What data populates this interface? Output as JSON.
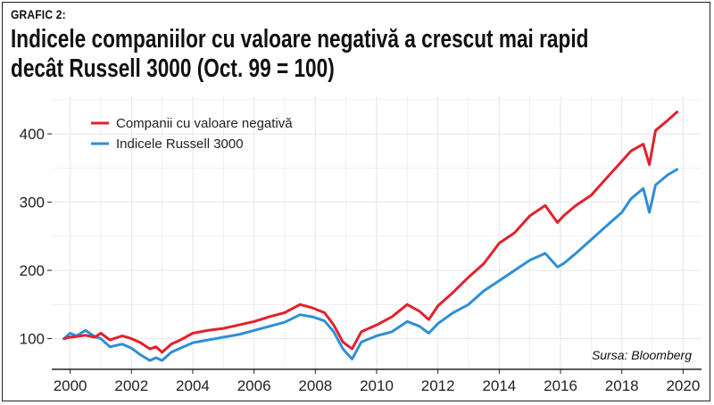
{
  "header": {
    "label": "GRAFIC 2:",
    "title": "Indicele companiilor cu valoare negativă a crescut mai rapid decât Russell 3000 (Oct. 99 = 100)"
  },
  "source": "Sursa: Bloomberg",
  "colors": {
    "series1": "#e2212d",
    "series2": "#2e8fd6",
    "grid": "#e6e6e6"
  },
  "chart_data": {
    "type": "line",
    "title": "Indicele companiilor cu valoare negativă a crescut mai rapid decât Russell 3000 (Oct. 99 = 100)",
    "xlabel": "",
    "ylabel": "",
    "xlim": [
      1999.4,
      2020.6
    ],
    "ylim": [
      55,
      455
    ],
    "xticks": [
      2000,
      2002,
      2004,
      2006,
      2008,
      2010,
      2012,
      2014,
      2016,
      2018,
      2020
    ],
    "yticks": [
      100,
      200,
      300,
      400
    ],
    "grid": true,
    "legend_position": "top-left",
    "series": [
      {
        "name": "Companii cu valoare negativă",
        "color": "#e2212d",
        "x": [
          1999.8,
          2000.0,
          2000.2,
          2000.5,
          2000.8,
          2001.0,
          2001.3,
          2001.7,
          2002.0,
          2002.3,
          2002.6,
          2002.8,
          2003.0,
          2003.3,
          2003.6,
          2004.0,
          2004.5,
          2005.0,
          2005.5,
          2006.0,
          2006.5,
          2007.0,
          2007.5,
          2007.9,
          2008.3,
          2008.6,
          2008.9,
          2009.2,
          2009.5,
          2010.0,
          2010.5,
          2011.0,
          2011.4,
          2011.7,
          2012.0,
          2012.5,
          2013.0,
          2013.5,
          2014.0,
          2014.5,
          2015.0,
          2015.5,
          2015.9,
          2016.1,
          2016.5,
          2017.0,
          2017.5,
          2018.0,
          2018.3,
          2018.7,
          2018.9,
          2019.1,
          2019.5,
          2019.8
        ],
        "y": [
          100,
          102,
          103,
          105,
          102,
          108,
          98,
          104,
          100,
          94,
          85,
          88,
          80,
          92,
          98,
          108,
          112,
          115,
          120,
          125,
          132,
          138,
          150,
          145,
          138,
          120,
          95,
          85,
          110,
          120,
          132,
          150,
          140,
          128,
          148,
          168,
          190,
          210,
          240,
          255,
          280,
          295,
          270,
          280,
          295,
          310,
          335,
          360,
          375,
          385,
          355,
          405,
          420,
          432
        ]
      },
      {
        "name": "Indicele Russell 3000",
        "color": "#2e8fd6",
        "x": [
          1999.8,
          2000.0,
          2000.2,
          2000.5,
          2000.8,
          2001.0,
          2001.3,
          2001.7,
          2002.0,
          2002.3,
          2002.6,
          2002.8,
          2003.0,
          2003.3,
          2003.6,
          2004.0,
          2004.5,
          2005.0,
          2005.5,
          2006.0,
          2006.5,
          2007.0,
          2007.5,
          2007.9,
          2008.3,
          2008.6,
          2008.9,
          2009.2,
          2009.5,
          2010.0,
          2010.5,
          2011.0,
          2011.4,
          2011.7,
          2012.0,
          2012.5,
          2013.0,
          2013.5,
          2014.0,
          2014.5,
          2015.0,
          2015.5,
          2015.9,
          2016.1,
          2016.5,
          2017.0,
          2017.5,
          2018.0,
          2018.3,
          2018.7,
          2018.9,
          2019.1,
          2019.5,
          2019.8
        ],
        "y": [
          100,
          108,
          104,
          112,
          103,
          100,
          88,
          92,
          86,
          76,
          68,
          72,
          68,
          80,
          86,
          94,
          98,
          102,
          106,
          112,
          118,
          124,
          135,
          132,
          126,
          110,
          85,
          70,
          95,
          104,
          110,
          125,
          118,
          108,
          122,
          138,
          150,
          170,
          185,
          200,
          215,
          225,
          205,
          210,
          225,
          245,
          265,
          285,
          305,
          320,
          285,
          325,
          340,
          348
        ]
      }
    ]
  }
}
